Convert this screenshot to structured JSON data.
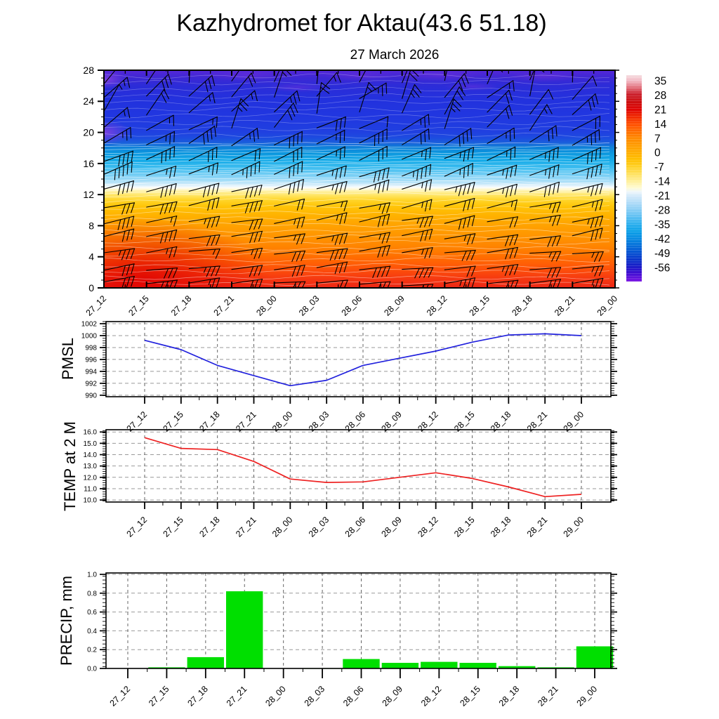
{
  "header": {
    "title": "Kazhydromet for Aktau(43.6 51.18)",
    "subtitle": "27 March 2026"
  },
  "time_labels": [
    "27_12",
    "27_15",
    "27_18",
    "27_21",
    "28_00",
    "28_03",
    "28_06",
    "28_09",
    "28_12",
    "28_15",
    "28_18",
    "28_21",
    "29_00"
  ],
  "colors": {
    "pmsl_line": "#2222dd",
    "temp_line": "#ee2222",
    "precip_bar": "#00df00",
    "grid_h": "#999999",
    "grid_v": "#666666",
    "axis": "#000000",
    "barb": "#000000",
    "contour_line": "#ffffff"
  },
  "chart_data": [
    {
      "id": "upper_air",
      "type": "heatmap",
      "description": "time-height temperature cross-section with wind barbs",
      "y_tick_labels": [
        "0",
        "4",
        "8",
        "12",
        "16",
        "20",
        "24",
        "28"
      ],
      "y_ticks": [
        0,
        4,
        8,
        12,
        16,
        20,
        24,
        28
      ],
      "ylim": [
        0,
        28
      ],
      "freezing_band_height": 12.9,
      "field_color_stops": [
        [
          28,
          "#5526d8"
        ],
        [
          27,
          "#3c28d4"
        ],
        [
          26,
          "#2c2cd8"
        ],
        [
          24,
          "#2232de"
        ],
        [
          22,
          "#2137e0"
        ],
        [
          20,
          "#2040e0"
        ],
        [
          19.3,
          "#1d4ce0"
        ],
        [
          18.7,
          "#1a5edc"
        ],
        [
          18.1,
          "#0f80d8"
        ],
        [
          17.4,
          "#0c96de"
        ],
        [
          16.4,
          "#16abe8"
        ],
        [
          15.4,
          "#40bef0"
        ],
        [
          14.4,
          "#7dd0f5"
        ],
        [
          13.7,
          "#abdff8"
        ],
        [
          13.2,
          "#d9effb"
        ],
        [
          12.95,
          "#f6fcfe"
        ],
        [
          12.8,
          "#fffbe4"
        ],
        [
          12.45,
          "#fff2a8"
        ],
        [
          11.9,
          "#ffe562"
        ],
        [
          11.3,
          "#ffd52a"
        ],
        [
          10.5,
          "#ffc508"
        ],
        [
          9.4,
          "#ffb300"
        ],
        [
          8,
          "#ffa200"
        ],
        [
          6.5,
          "#ff9300"
        ],
        [
          5,
          "#ff8000"
        ],
        [
          4,
          "#ff6e00"
        ],
        [
          3,
          "#ff5c06"
        ],
        [
          2,
          "#fb480c"
        ],
        [
          1,
          "#f43612"
        ],
        [
          0,
          "#ec2614"
        ]
      ],
      "colorbar": {
        "tick_labels": [
          "35",
          "28",
          "21",
          "14",
          "7",
          "0",
          "-7",
          "-14",
          "-21",
          "-28",
          "-35",
          "-42",
          "-49",
          "-56"
        ],
        "tick_values": [
          35,
          28,
          21,
          14,
          7,
          0,
          -7,
          -14,
          -21,
          -28,
          -35,
          -42,
          -49,
          -56
        ],
        "stops": [
          [
            0.0,
            "#f6dfe2"
          ],
          [
            0.027,
            "#f2b9c4"
          ],
          [
            0.06,
            "#e2707c"
          ],
          [
            0.09,
            "#cc2430"
          ],
          [
            0.13,
            "#cc0f10"
          ],
          [
            0.166,
            "#e00505"
          ],
          [
            0.2,
            "#f02800"
          ],
          [
            0.236,
            "#ff4e00"
          ],
          [
            0.27,
            "#ff6c00"
          ],
          [
            0.306,
            "#ff8a00"
          ],
          [
            0.34,
            "#ff9c00"
          ],
          [
            0.375,
            "#ffae00"
          ],
          [
            0.41,
            "#ffc000"
          ],
          [
            0.445,
            "#ffd22a"
          ],
          [
            0.48,
            "#ffe262"
          ],
          [
            0.515,
            "#fff09c"
          ],
          [
            0.545,
            "#fffbd2"
          ],
          [
            0.565,
            "#eef6fb"
          ],
          [
            0.585,
            "#d4eafa"
          ],
          [
            0.615,
            "#b4ddf8"
          ],
          [
            0.65,
            "#8ccff5"
          ],
          [
            0.685,
            "#5fc0f2"
          ],
          [
            0.72,
            "#2fb0ee"
          ],
          [
            0.755,
            "#0da2e8"
          ],
          [
            0.79,
            "#088ce2"
          ],
          [
            0.825,
            "#0670da"
          ],
          [
            0.86,
            "#0552d2"
          ],
          [
            0.895,
            "#0b35ca"
          ],
          [
            0.93,
            "#1b1ac8"
          ],
          [
            0.955,
            "#3a0ed0"
          ],
          [
            1.0,
            "#7a14e4"
          ]
        ]
      },
      "barbs": {
        "columns": 13,
        "rows": [
          {
            "height": 0.5,
            "angle": -6,
            "feathers": 3
          },
          {
            "height": 2.5,
            "angle": -8,
            "feathers": 3
          },
          {
            "height": 4.5,
            "angle": -8,
            "feathers": 3
          },
          {
            "height": 6.5,
            "angle": -10,
            "feathers": 3
          },
          {
            "height": 8.5,
            "angle": -10,
            "feathers": 3
          },
          {
            "height": 10.5,
            "angle": -12,
            "feathers": 3
          },
          {
            "height": 12.5,
            "angle": -16,
            "feathers": 4
          },
          {
            "height": 14.5,
            "angle": -20,
            "feathers": 4
          },
          {
            "height": 16.5,
            "angle": -24,
            "feathers": 3
          },
          {
            "height": 18.5,
            "angle": -30,
            "feathers": 3
          },
          {
            "height": 20.5,
            "angle": -48,
            "feathers": 2
          },
          {
            "height": 22.5,
            "angle": -60,
            "feathers": 2
          },
          {
            "height": 24.5,
            "angle": -55,
            "feathers": 2
          },
          {
            "height": 26.5,
            "angle": -65,
            "feathers": 2
          }
        ]
      }
    },
    {
      "id": "pmsl",
      "type": "line",
      "label": "PMSL",
      "values": [
        999.2,
        997.65,
        995.0,
        993.3,
        991.6,
        992.5,
        995.0,
        996.2,
        997.4,
        998.9,
        1000.1,
        1000.3,
        1000.0
      ],
      "y_ticks": [
        990,
        992,
        994,
        996,
        998,
        1000,
        1002
      ],
      "y_tick_labels": [
        "990",
        "992",
        "994",
        "996",
        "998",
        "1000",
        "1002"
      ],
      "ylim": [
        989.75,
        1002.35
      ]
    },
    {
      "id": "temp",
      "type": "line",
      "label": "TEMP at 2 M",
      "values": [
        15.5,
        14.55,
        14.45,
        13.4,
        11.85,
        11.55,
        11.6,
        12.0,
        12.4,
        11.9,
        11.15,
        10.3,
        10.5
      ],
      "y_ticks": [
        10,
        11,
        12,
        13,
        14,
        15,
        16
      ],
      "y_tick_labels": [
        "10.0",
        "11.0",
        "12.0",
        "13.0",
        "14.0",
        "15.0",
        "16.0"
      ],
      "ylim": [
        9.82,
        16.2
      ]
    },
    {
      "id": "precip",
      "type": "bar",
      "label": "PRECIP, mm",
      "values": [
        0,
        0.012,
        0.12,
        0.82,
        0,
        0.003,
        0.1,
        0.06,
        0.07,
        0.06,
        0.025,
        0.012,
        0.235
      ],
      "y_ticks": [
        0,
        0.2,
        0.4,
        0.6,
        0.8,
        1.0
      ],
      "y_tick_labels": [
        "0.0",
        "0.2",
        "0.4",
        "0.6",
        "0.8",
        "1.0"
      ],
      "ylim": [
        0,
        1.015
      ]
    }
  ]
}
